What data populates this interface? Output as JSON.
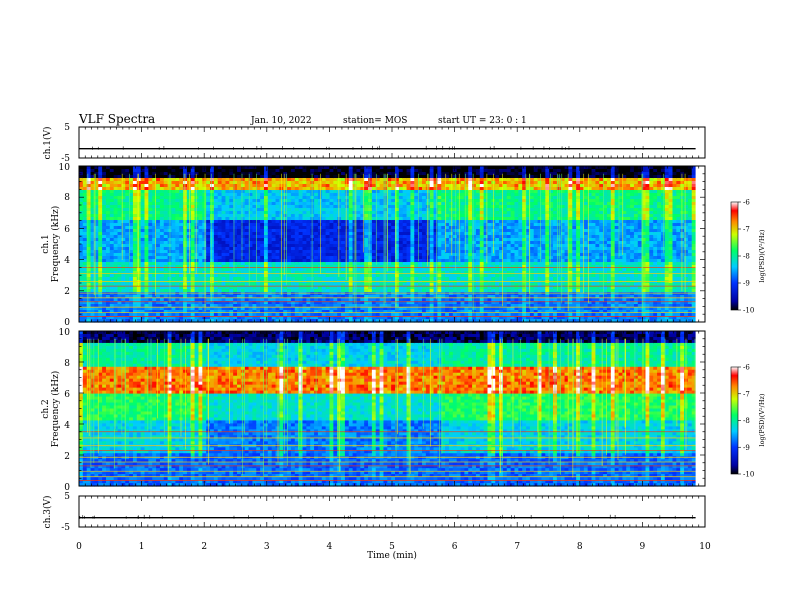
{
  "header": {
    "title": "VLF Spectra",
    "date": "Jan. 10, 2022",
    "station": "station= MOS",
    "start": "start  UT =   23: 0  : 1"
  },
  "chart_data": [
    {
      "type": "line",
      "panel": "waveform-ch1",
      "ylabel": "ch.1(V)",
      "ylim": [
        -5,
        5
      ],
      "yticks": [
        "5",
        "-5"
      ],
      "series": [
        {
          "values_approx": -2.0
        }
      ],
      "xlim": [
        0,
        10
      ]
    },
    {
      "type": "heatmap",
      "panel": "spectrogram-ch1",
      "ylabel": "ch.1\nFrequency (kHz)",
      "ylim": [
        0,
        10
      ],
      "yticks": [
        "0",
        "2",
        "4",
        "6",
        "8",
        "10"
      ],
      "xlim": [
        0,
        10
      ],
      "data_extent_min": [
        0,
        9.85
      ],
      "step_change_min": 5.75,
      "colorbar": {
        "label": "log(PSD)(V²/Hz)",
        "range": [
          -10,
          -6
        ],
        "ticks": [
          "-6",
          "-7",
          "-8",
          "-9",
          "-10"
        ]
      }
    },
    {
      "type": "heatmap",
      "panel": "spectrogram-ch2",
      "ylabel": "ch.2\nFrequency (kHz)",
      "ylim": [
        0,
        10
      ],
      "yticks": [
        "0",
        "2",
        "4",
        "6",
        "8",
        "10"
      ],
      "xlim": [
        0,
        10
      ],
      "data_extent_min": [
        0,
        9.85
      ],
      "step_change_min": 5.75,
      "colorbar": {
        "label": "log(PSD)(V²/Hz)",
        "range": [
          -10,
          -6
        ],
        "ticks": [
          "-6",
          "-7",
          "-8",
          "-9",
          "-10"
        ]
      }
    },
    {
      "type": "line",
      "panel": "waveform-ch3",
      "ylabel": "ch.3(V)",
      "ylim": [
        -5,
        5
      ],
      "yticks": [
        "5",
        "-5"
      ],
      "series": [
        {
          "values_approx": -2.0
        }
      ],
      "xlim": [
        0,
        10
      ],
      "xlabel": "Time (min)",
      "xticks": [
        "0",
        "1",
        "2",
        "3",
        "4",
        "5",
        "6",
        "7",
        "8",
        "9",
        "10"
      ]
    }
  ],
  "labels": {
    "ch1_wave": "ch.1(V)",
    "ch1_spec": "ch.1",
    "ch2_spec": "ch.2",
    "ch3_wave": "ch.3(V)",
    "freq": "Frequency (kHz)",
    "time": "Time (min)",
    "cbar": "log(PSD)(V²/Hz)"
  },
  "yticks_wave": [
    "5",
    "-5"
  ],
  "yticks_freq": [
    "0",
    "2",
    "4",
    "6",
    "8",
    "10"
  ],
  "xticks": [
    "0",
    "1",
    "2",
    "3",
    "4",
    "5",
    "6",
    "7",
    "8",
    "9",
    "10"
  ],
  "cbar_ticks": [
    "-6",
    "-7",
    "-8",
    "-9",
    "-10"
  ]
}
